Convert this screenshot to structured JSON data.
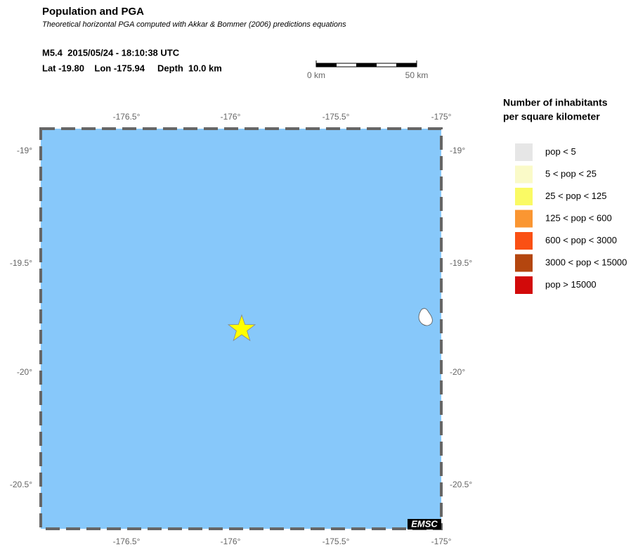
{
  "header": {
    "title": "Population and PGA",
    "subtitle": "Theoretical horizontal PGA computed with Akkar & Bommer (2006) predictions equations",
    "event": "M5.4  2015/05/24 - 18:10:38 UTC",
    "location": "Lat -19.80    Lon -175.94     Depth  10.0 km"
  },
  "scale_bar": {
    "labels": [
      "0 km",
      "50 km"
    ]
  },
  "map": {
    "background": "#87c8fa",
    "lon_ticks": [
      "-176.5°",
      "-176°",
      "-175.5°",
      "-175°"
    ],
    "lat_ticks": [
      "-19°",
      "-19.5°",
      "-20°",
      "-20.5°"
    ],
    "credit": "EMSC"
  },
  "legend": {
    "title": [
      "Number of inhabitants",
      "per square kilometer"
    ],
    "items": [
      {
        "label": "pop < 5",
        "color": "#e6e6e6"
      },
      {
        "label": "5 < pop < 25",
        "color": "#fafac8"
      },
      {
        "label": "25 < pop < 125",
        "color": "#fafa64"
      },
      {
        "label": "125 < pop < 600",
        "color": "#fa9632"
      },
      {
        "label": "600 < pop < 3000",
        "color": "#fa5014"
      },
      {
        "label": "3000 < pop < 15000",
        "color": "#b4460f"
      },
      {
        "label": "pop > 15000",
        "color": "#d20a0a"
      }
    ]
  }
}
